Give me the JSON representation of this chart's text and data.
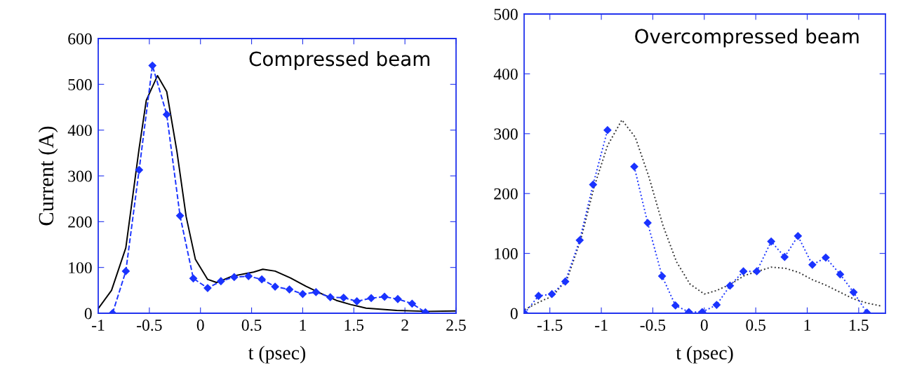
{
  "chart_data": [
    {
      "type": "line",
      "ylabel": "Current (A)",
      "xlabel": "t (psec)",
      "annotations": [
        "Compressed beam"
      ],
      "xlim": [
        -1,
        2.5
      ],
      "ylim": [
        0,
        600
      ],
      "xticks": [
        -1,
        -0.5,
        0,
        0.5,
        1,
        1.5,
        2,
        2.5
      ],
      "yticks": [
        0,
        100,
        200,
        300,
        400,
        500,
        600
      ],
      "grid": false,
      "series": [
        {
          "color": "#000000",
          "line_style": "solid",
          "marker": "none",
          "x": [
            -1,
            -0.87,
            -0.73,
            -0.6,
            -0.53,
            -0.42,
            -0.33,
            -0.23,
            -0.14,
            -0.05,
            0.07,
            0.16,
            0.31,
            0.52,
            0.61,
            0.73,
            0.88,
            1.03,
            1.18,
            1.33,
            1.47,
            1.62,
            1.92,
            2.22,
            2.5
          ],
          "values": [
            10,
            50,
            143,
            360,
            465,
            519,
            484,
            353,
            211,
            118,
            74,
            67,
            81,
            90,
            96,
            92,
            77,
            59,
            43,
            28,
            19,
            11,
            6,
            4,
            5
          ]
        },
        {
          "color": "#1a33ff",
          "line_style": "dashed",
          "marker": "diamond",
          "x": [
            -0.86,
            -0.73,
            -0.6,
            -0.47,
            -0.33,
            -0.2,
            -0.07,
            0.07,
            0.2,
            0.33,
            0.47,
            0.6,
            0.73,
            0.87,
            1.0,
            1.13,
            1.27,
            1.4,
            1.53,
            1.67,
            1.8,
            1.93,
            2.07,
            2.2
          ],
          "values": [
            0,
            92,
            313,
            541,
            434,
            213,
            76,
            55,
            70,
            79,
            81,
            74,
            58,
            52,
            42,
            46,
            35,
            34,
            26,
            33,
            36,
            31,
            21,
            2
          ]
        }
      ]
    },
    {
      "type": "line",
      "xlabel": "t (psec)",
      "annotations": [
        "Overcompressed beam"
      ],
      "xlim": [
        -1.75,
        1.76
      ],
      "ylim": [
        0,
        500
      ],
      "xticks": [
        -1.5,
        -1,
        -0.5,
        0,
        0.5,
        1,
        1.5
      ],
      "yticks": [
        0,
        100,
        200,
        300,
        400,
        500
      ],
      "grid": false,
      "series": [
        {
          "color": "#333333",
          "line_style": "dotted",
          "marker": "none",
          "x": [
            -1.745,
            -1.6,
            -1.47,
            -1.33,
            -1.2,
            -1.07,
            -0.94,
            -0.8,
            -0.67,
            -0.54,
            -0.4,
            -0.27,
            -0.14,
            0,
            0.12,
            0.26,
            0.39,
            0.52,
            0.65,
            0.79,
            0.92,
            1.05,
            1.18,
            1.32,
            1.45,
            1.58,
            1.72
          ],
          "values": [
            6,
            19,
            29,
            58,
            123,
            211,
            280,
            323,
            294,
            229,
            146,
            86,
            49,
            32,
            38,
            49,
            63,
            70,
            77,
            75,
            68,
            56,
            47,
            35,
            24,
            17,
            12
          ]
        },
        {
          "color": "#1a33ff",
          "line_style": "dotted",
          "marker": "diamond",
          "x": [
            -1.745,
            -1.61,
            -1.48,
            -1.35,
            -1.21,
            -1.08,
            -0.94,
            -0.81,
            -0.68,
            -0.55,
            -0.41,
            -0.28,
            -0.15,
            -0.02,
            0.12,
            0.25,
            0.38,
            0.51,
            0.65,
            0.78,
            0.91,
            1.05,
            1.18,
            1.32,
            1.45,
            1.58
          ],
          "values": [
            0,
            29,
            32,
            53,
            122,
            215,
            306,
            null,
            245,
            151,
            62,
            13,
            2,
            2,
            14,
            46,
            70,
            70,
            120,
            94,
            129,
            81,
            93,
            65,
            35,
            1
          ]
        }
      ]
    }
  ]
}
